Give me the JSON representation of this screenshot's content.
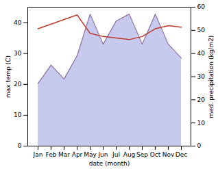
{
  "chart_data": {
    "type": "line",
    "categories": [
      "Jan",
      "Feb",
      "Mar",
      "Apr",
      "May",
      "Jun",
      "Jul",
      "Aug",
      "Sep",
      "Oct",
      "Nov",
      "Dec"
    ],
    "xlabel": "date (month)",
    "ylabel": "max temp (C)",
    "y2label": "med. precipitation (kg/m2)",
    "ylim": [
      0,
      45
    ],
    "yticks": [
      0,
      10,
      20,
      30,
      40
    ],
    "y2lim": [
      0,
      60
    ],
    "y2ticks": [
      0,
      10,
      20,
      30,
      40,
      50,
      60
    ],
    "series": [
      {
        "type": "area",
        "axis": "y2",
        "color": "#c5caee",
        "values": [
          27,
          35,
          29,
          39,
          57,
          44,
          54,
          57,
          44,
          57,
          44,
          38
        ]
      },
      {
        "type": "line",
        "axis": "y2",
        "color": "#9370a0",
        "values": [
          27,
          35,
          29,
          39,
          57,
          44,
          54,
          57,
          44,
          57,
          44,
          38
        ]
      },
      {
        "type": "line",
        "axis": "y",
        "color": "#c0392b",
        "values": [
          38,
          39.5,
          41,
          42.5,
          36.5,
          35.5,
          35.0,
          34.5,
          35.5,
          38.0,
          39.0,
          38.5
        ]
      }
    ]
  }
}
